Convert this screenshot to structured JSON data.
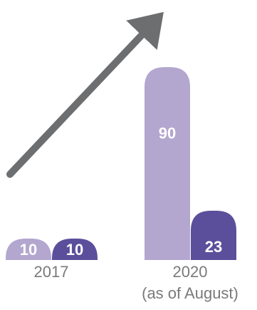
{
  "chart_data": {
    "type": "bar",
    "categories": [
      "2017",
      "2020\n(as of August)"
    ],
    "category_lines": [
      [
        "2017"
      ],
      [
        "2020",
        "(as of August)"
      ]
    ],
    "series": [
      {
        "values": [
          10,
          90
        ]
      },
      {
        "values": [
          10,
          23
        ]
      }
    ],
    "data_labels": [
      [
        "10",
        "90"
      ],
      [
        "10",
        "23"
      ]
    ],
    "ylim": [
      0,
      100
    ],
    "grid": false,
    "legend": "none",
    "trend_arrow": true
  },
  "colors": {
    "series_1": "#b3a6cf",
    "series_2": "#5b4f9c",
    "arrow": "#6d6e70",
    "label_text": "#7a7a7a",
    "value_text": "#ffffff"
  }
}
